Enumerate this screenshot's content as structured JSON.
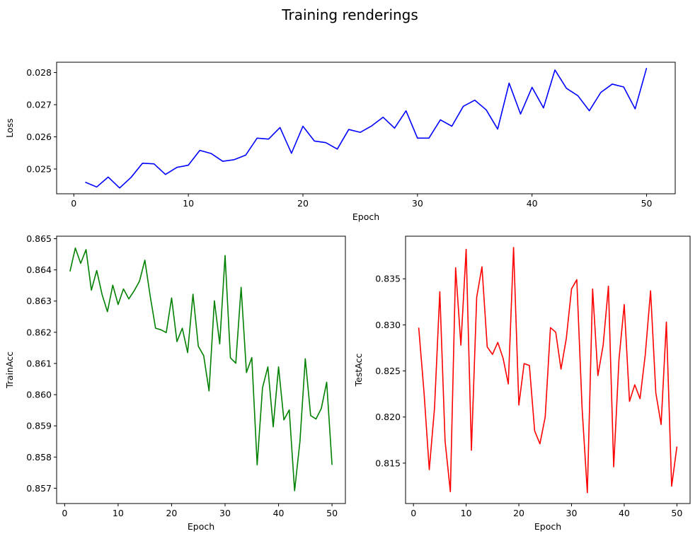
{
  "figure_title": "Training renderings",
  "chart_data": [
    {
      "type": "line",
      "title": "",
      "xlabel": "Epoch",
      "ylabel": "Loss",
      "color": "#0000ff",
      "xlim": [
        -1.5,
        52.5
      ],
      "ylim": [
        0.02423,
        0.02832
      ],
      "xticks": [
        0,
        10,
        20,
        30,
        40,
        50
      ],
      "yticks": [
        0.025,
        0.026,
        0.027,
        0.028
      ],
      "ytick_labels": [
        "0.025",
        "0.026",
        "0.027",
        "0.028"
      ],
      "grid": false,
      "x": [
        1,
        2,
        3,
        4,
        5,
        6,
        7,
        8,
        9,
        10,
        11,
        12,
        13,
        14,
        15,
        16,
        17,
        18,
        19,
        20,
        21,
        22,
        23,
        24,
        25,
        26,
        27,
        28,
        29,
        30,
        31,
        32,
        33,
        34,
        35,
        36,
        37,
        38,
        39,
        40,
        41,
        42,
        43,
        44,
        45,
        46,
        47,
        48,
        49,
        50
      ],
      "values": [
        0.02459,
        0.02444,
        0.02475,
        0.02441,
        0.02474,
        0.02518,
        0.02516,
        0.02483,
        0.02505,
        0.02512,
        0.02558,
        0.02548,
        0.02524,
        0.02529,
        0.02543,
        0.02596,
        0.02593,
        0.02629,
        0.02549,
        0.02633,
        0.02587,
        0.02582,
        0.02562,
        0.02623,
        0.02614,
        0.02634,
        0.02661,
        0.02627,
        0.02681,
        0.02596,
        0.02596,
        0.02653,
        0.02633,
        0.02695,
        0.02714,
        0.02684,
        0.02624,
        0.02767,
        0.02671,
        0.02754,
        0.0269,
        0.02808,
        0.02751,
        0.02728,
        0.02681,
        0.02738,
        0.02764,
        0.02755,
        0.02687,
        0.02814
      ]
    },
    {
      "type": "line",
      "title": "",
      "xlabel": "Epoch",
      "ylabel": "TrainAcc",
      "color": "#008000",
      "xlim": [
        -1.5,
        52.5
      ],
      "ylim": [
        0.85651,
        0.86508
      ],
      "xticks": [
        0,
        10,
        20,
        30,
        40,
        50
      ],
      "yticks": [
        0.857,
        0.858,
        0.859,
        0.86,
        0.861,
        0.862,
        0.863,
        0.864,
        0.865
      ],
      "ytick_labels": [
        "0.857",
        "0.858",
        "0.859",
        "0.860",
        "0.861",
        "0.862",
        "0.863",
        "0.864",
        "0.865"
      ],
      "grid": false,
      "x": [
        1,
        2,
        3,
        4,
        5,
        6,
        7,
        8,
        9,
        10,
        11,
        12,
        13,
        14,
        15,
        16,
        17,
        18,
        19,
        20,
        21,
        22,
        23,
        24,
        25,
        26,
        27,
        28,
        29,
        30,
        31,
        32,
        33,
        34,
        35,
        36,
        37,
        38,
        39,
        40,
        41,
        42,
        43,
        44,
        45,
        46,
        47,
        48,
        49,
        50
      ],
      "values": [
        0.86395,
        0.8647,
        0.86421,
        0.86465,
        0.86335,
        0.86398,
        0.86321,
        0.86266,
        0.86351,
        0.86289,
        0.86339,
        0.86307,
        0.86333,
        0.86364,
        0.86431,
        0.86316,
        0.86213,
        0.86208,
        0.86199,
        0.8631,
        0.8617,
        0.86213,
        0.86135,
        0.86322,
        0.86155,
        0.86125,
        0.86012,
        0.86301,
        0.86163,
        0.86446,
        0.86118,
        0.86101,
        0.86344,
        0.86071,
        0.86119,
        0.85775,
        0.86022,
        0.86089,
        0.85897,
        0.86089,
        0.85919,
        0.85951,
        0.85692,
        0.8585,
        0.86115,
        0.85933,
        0.85922,
        0.85956,
        0.8604,
        0.85775
      ]
    },
    {
      "type": "line",
      "title": "",
      "xlabel": "Epoch",
      "ylabel": "TestAcc",
      "color": "#ff0000",
      "xlim": [
        -1.5,
        52.5
      ],
      "ylim": [
        0.81062,
        0.83962
      ],
      "xticks": [
        0,
        10,
        20,
        30,
        40,
        50
      ],
      "yticks": [
        0.815,
        0.82,
        0.825,
        0.83,
        0.835
      ],
      "ytick_labels": [
        "0.815",
        "0.820",
        "0.825",
        "0.830",
        "0.835"
      ],
      "grid": false,
      "x": [
        1,
        2,
        3,
        4,
        5,
        6,
        7,
        8,
        9,
        10,
        11,
        12,
        13,
        14,
        15,
        16,
        17,
        18,
        19,
        20,
        21,
        22,
        23,
        24,
        25,
        26,
        27,
        28,
        29,
        30,
        31,
        32,
        33,
        34,
        35,
        36,
        37,
        38,
        39,
        40,
        41,
        42,
        43,
        44,
        45,
        46,
        47,
        48,
        49,
        50
      ],
      "values": [
        0.8297,
        0.8227,
        0.8143,
        0.821,
        0.8336,
        0.8174,
        0.8119,
        0.8362,
        0.8278,
        0.8382,
        0.8164,
        0.833,
        0.8363,
        0.8276,
        0.8268,
        0.8281,
        0.8264,
        0.8236,
        0.8384,
        0.8213,
        0.8258,
        0.8256,
        0.8185,
        0.8171,
        0.82,
        0.8297,
        0.8292,
        0.8252,
        0.8285,
        0.8339,
        0.8349,
        0.821,
        0.8118,
        0.8339,
        0.8245,
        0.8278,
        0.8342,
        0.8146,
        0.8262,
        0.8322,
        0.8217,
        0.8235,
        0.822,
        0.8268,
        0.8337,
        0.8226,
        0.8192,
        0.8303,
        0.8125,
        0.8168
      ]
    }
  ]
}
